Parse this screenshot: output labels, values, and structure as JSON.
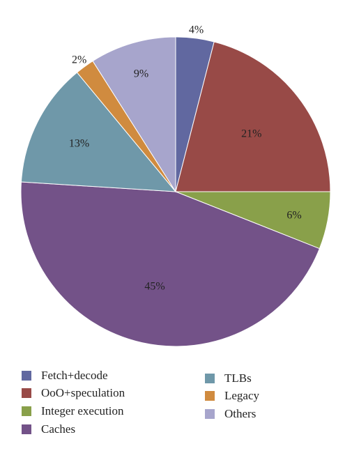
{
  "chart_data": {
    "type": "pie",
    "title": "",
    "categories": [
      "Fetch+decode",
      "OoO+speculation",
      "Integer execution",
      "Caches",
      "TLBs",
      "Legacy",
      "Others"
    ],
    "values": [
      4,
      21,
      6,
      45,
      13,
      2,
      9
    ],
    "labels": [
      "4%",
      "21%",
      "6%",
      "45%",
      "13%",
      "2%",
      "9%"
    ],
    "colors": [
      "#6168a0",
      "#984a47",
      "#89a04a",
      "#735288",
      "#6f98a9",
      "#d08b3f",
      "#a7a5cc"
    ],
    "unit": "%",
    "legend_position": "bottom",
    "legend_columns": 2
  }
}
